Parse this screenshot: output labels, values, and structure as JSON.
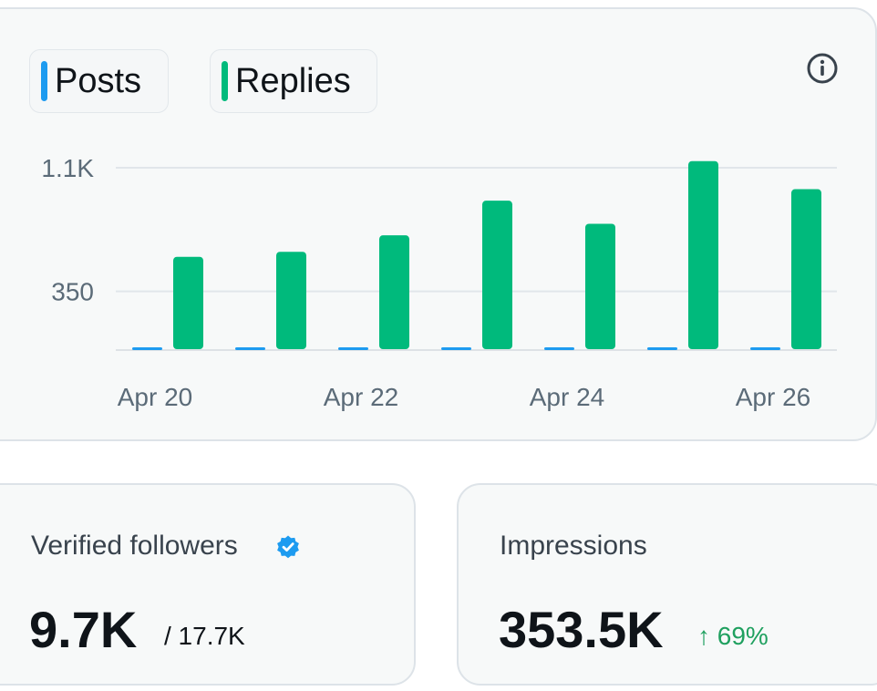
{
  "legend": {
    "posts_label": "Posts",
    "replies_label": "Replies",
    "posts_color": "#1d9bf0",
    "replies_color": "#00ba7c"
  },
  "info_icon": "info-icon",
  "chart_data": {
    "type": "bar",
    "categories": [
      "Apr 20",
      "Apr 21",
      "Apr 22",
      "Apr 23",
      "Apr 24",
      "Apr 25",
      "Apr 26"
    ],
    "x_tick_labels": [
      "Apr 20",
      "Apr 22",
      "Apr 24",
      "Apr 26"
    ],
    "y_tick_labels": [
      "1.1K",
      "350"
    ],
    "y_ticks": [
      1100,
      350
    ],
    "ylim": [
      0,
      1100
    ],
    "series": [
      {
        "name": "Posts",
        "color": "#1d9bf0",
        "values": [
          0,
          0,
          0,
          0,
          0,
          0,
          0
        ]
      },
      {
        "name": "Replies",
        "color": "#00ba7c",
        "values": [
          560,
          590,
          690,
          900,
          760,
          1140,
          970
        ]
      }
    ]
  },
  "stats": {
    "followers": {
      "title": "Verified followers",
      "value": "9.7K",
      "total": "/ 17.7K",
      "badge_icon": "verified-badge-icon"
    },
    "impressions": {
      "title": "Impressions",
      "value": "353.5K",
      "change": "↑ 69%",
      "change_color": "#1fa05f"
    }
  }
}
